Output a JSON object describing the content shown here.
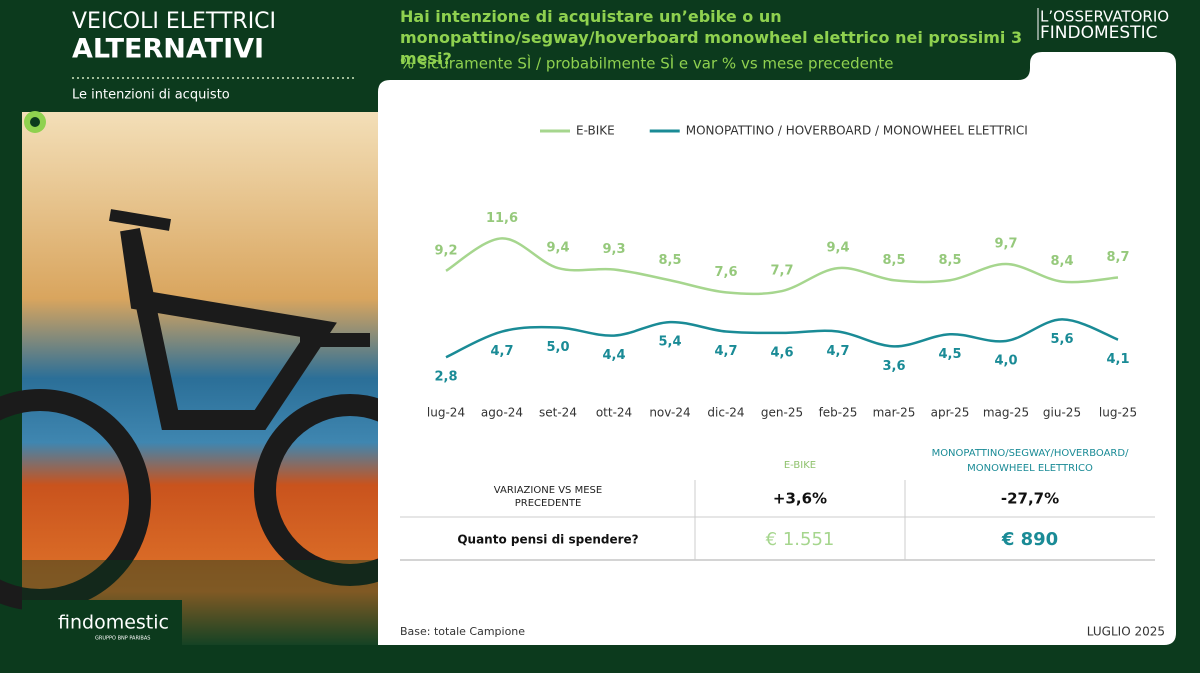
{
  "header": {
    "title_line1": "VEICOLI ELETTRICI",
    "title_line2": "ALTERNATIVI",
    "subtitle": "Le intenzioni di acquisto",
    "brand_top": "L’OSSERVATORIO",
    "brand_bottom": "FINDOMESTIC"
  },
  "logo": {
    "name": "findomestic",
    "group": "GRUPPO BNP PARIBAS"
  },
  "chart_data": {
    "type": "line",
    "title": "Hai intenzione di acquistare un’ebike o un monopattino/segway/hoverboard monowheel elettrico nei prossimi 3 mesi?",
    "subtitle": "% sicuramente SÌ / probabilmente SÌ e var % vs mese precedente",
    "categories": [
      "lug-24",
      "ago-24",
      "set-24",
      "ott-24",
      "nov-24",
      "dic-24",
      "gen-25",
      "feb-25",
      "mar-25",
      "apr-25",
      "mag-25",
      "giu-25",
      "lug-25"
    ],
    "series": [
      {
        "name": "E-BIKE",
        "color": "#a6d68e",
        "values": [
          9.2,
          11.6,
          9.4,
          9.3,
          8.5,
          7.6,
          7.7,
          9.4,
          8.5,
          8.5,
          9.7,
          8.4,
          8.7
        ],
        "value_labels": [
          "9,2",
          "11,6",
          "9,4",
          "9,3",
          "8,5",
          "7,6",
          "7,7",
          "9,4",
          "8,5",
          "8,5",
          "9,7",
          "8,4",
          "8,7"
        ]
      },
      {
        "name": "MONOPATTINO / HOVERBOARD / MONOWHEEL ELETTRICI",
        "color": "#1a8b96",
        "values": [
          2.8,
          4.7,
          5.0,
          4.4,
          5.4,
          4.7,
          4.6,
          4.7,
          3.6,
          4.5,
          4.0,
          5.6,
          4.1
        ],
        "value_labels": [
          "2,8",
          "4,7",
          "5,0",
          "4,4",
          "5,4",
          "4,7",
          "4,6",
          "4,7",
          "3,6",
          "4,5",
          "4,0",
          "5,6",
          "4,1"
        ]
      }
    ],
    "ylim": [
      0,
      13
    ]
  },
  "table": {
    "headers": [
      "E-BIKE",
      "MONOPATTINO/SEGWAY/HOVERBOARD/ MONOWHEEL ELETTRICO"
    ],
    "rows": [
      [
        "VARIAZIONE VS MESE PRECEDENTE",
        "+3,6%",
        "-27,7%"
      ],
      [
        "Quanto pensi di spendere?",
        "€ 1.551",
        "€ 890"
      ]
    ]
  },
  "footer": {
    "base": "Base: totale Campione",
    "date": "LUGLIO 2025"
  }
}
